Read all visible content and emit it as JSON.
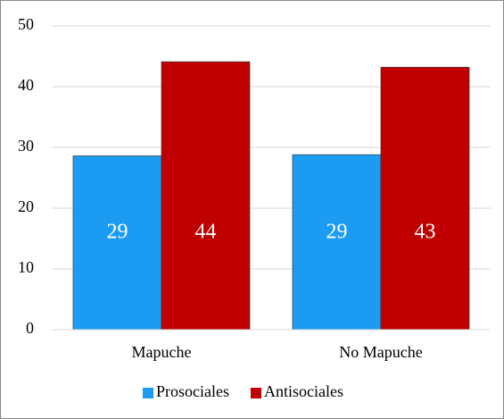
{
  "chart_data": {
    "type": "bar",
    "categories": [
      "Mapuche",
      "No Mapuche"
    ],
    "series": [
      {
        "name": "Prosociales",
        "color": "#1b9cf2",
        "values": [
          28.6,
          28.8
        ],
        "value_labels": [
          "29",
          "29"
        ]
      },
      {
        "name": "Antisociales",
        "color": "#c00000",
        "values": [
          44.1,
          43.2
        ],
        "value_labels": [
          "44",
          "43"
        ]
      }
    ],
    "ylim": [
      0,
      50
    ],
    "yticks": [
      0,
      10,
      20,
      30,
      40,
      50
    ],
    "grid": true,
    "legend": "bottom"
  }
}
